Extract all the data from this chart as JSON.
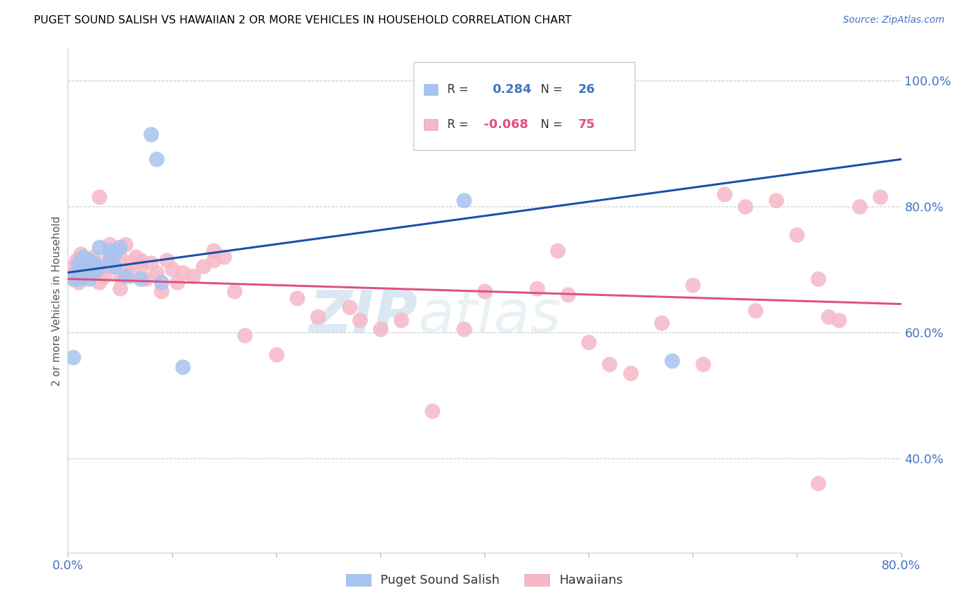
{
  "title": "PUGET SOUND SALISH VS HAWAIIAN 2 OR MORE VEHICLES IN HOUSEHOLD CORRELATION CHART",
  "source": "Source: ZipAtlas.com",
  "ylabel": "2 or more Vehicles in Household",
  "right_yticks": [
    "100.0%",
    "80.0%",
    "60.0%",
    "40.0%"
  ],
  "legend_blue_r": "0.284",
  "legend_blue_n": "26",
  "legend_pink_r": "-0.068",
  "legend_pink_n": "75",
  "watermark_zip": "ZIP",
  "watermark_atlas": "atlas",
  "blue_color": "#a8c4f0",
  "pink_color": "#f5b8c8",
  "line_blue": "#1a4faa",
  "line_pink": "#e05080",
  "blue_points_x": [
    0.005,
    0.005,
    0.008,
    0.01,
    0.01,
    0.015,
    0.015,
    0.02,
    0.02,
    0.025,
    0.025,
    0.03,
    0.03,
    0.04,
    0.04,
    0.045,
    0.045,
    0.05,
    0.055,
    0.07,
    0.08,
    0.085,
    0.09,
    0.11,
    0.38,
    0.58
  ],
  "blue_points_y": [
    0.56,
    0.685,
    0.695,
    0.685,
    0.71,
    0.69,
    0.72,
    0.685,
    0.715,
    0.695,
    0.71,
    0.705,
    0.735,
    0.715,
    0.73,
    0.705,
    0.725,
    0.735,
    0.69,
    0.685,
    0.915,
    0.875,
    0.68,
    0.545,
    0.81,
    0.555
  ],
  "pink_points_x": [
    0.005,
    0.005,
    0.008,
    0.01,
    0.01,
    0.012,
    0.015,
    0.02,
    0.02,
    0.025,
    0.025,
    0.03,
    0.03,
    0.03,
    0.035,
    0.04,
    0.04,
    0.04,
    0.04,
    0.05,
    0.05,
    0.05,
    0.055,
    0.055,
    0.06,
    0.06,
    0.065,
    0.07,
    0.07,
    0.075,
    0.08,
    0.085,
    0.09,
    0.095,
    0.1,
    0.105,
    0.11,
    0.12,
    0.13,
    0.14,
    0.14,
    0.15,
    0.16,
    0.17,
    0.2,
    0.22,
    0.24,
    0.27,
    0.28,
    0.3,
    0.32,
    0.35,
    0.38,
    0.4,
    0.43,
    0.45,
    0.47,
    0.48,
    0.5,
    0.52,
    0.54,
    0.57,
    0.6,
    0.61,
    0.63,
    0.65,
    0.66,
    0.68,
    0.7,
    0.72,
    0.73,
    0.74,
    0.76,
    0.78,
    0.72
  ],
  "pink_points_y": [
    0.685,
    0.705,
    0.715,
    0.68,
    0.705,
    0.725,
    0.695,
    0.695,
    0.715,
    0.7,
    0.72,
    0.68,
    0.7,
    0.815,
    0.69,
    0.705,
    0.71,
    0.72,
    0.74,
    0.67,
    0.69,
    0.72,
    0.7,
    0.74,
    0.69,
    0.71,
    0.72,
    0.705,
    0.715,
    0.685,
    0.71,
    0.695,
    0.665,
    0.715,
    0.7,
    0.68,
    0.695,
    0.69,
    0.705,
    0.715,
    0.73,
    0.72,
    0.665,
    0.595,
    0.565,
    0.655,
    0.625,
    0.64,
    0.62,
    0.605,
    0.62,
    0.475,
    0.605,
    0.665,
    0.905,
    0.67,
    0.73,
    0.66,
    0.585,
    0.55,
    0.535,
    0.615,
    0.675,
    0.55,
    0.82,
    0.8,
    0.635,
    0.81,
    0.755,
    0.36,
    0.625,
    0.62,
    0.8,
    0.815,
    0.685
  ],
  "xlim": [
    0.0,
    0.8
  ],
  "ylim": [
    0.25,
    1.05
  ],
  "blue_line_x0": 0.0,
  "blue_line_x1": 0.8,
  "blue_line_y0": 0.695,
  "blue_line_y1": 0.875,
  "pink_line_x0": 0.0,
  "pink_line_x1": 0.8,
  "pink_line_y0": 0.685,
  "pink_line_y1": 0.645,
  "axis_color": "#4472c4",
  "grid_color": "#cccccc",
  "right_ytick_positions": [
    1.0,
    0.8,
    0.6,
    0.4
  ],
  "xtick_vals": [
    0.0,
    0.1,
    0.2,
    0.3,
    0.4,
    0.5,
    0.6,
    0.7,
    0.8
  ],
  "xtick_labels": [
    "0.0%",
    "",
    "",
    "",
    "",
    "",
    "",
    "",
    "80.0%"
  ]
}
